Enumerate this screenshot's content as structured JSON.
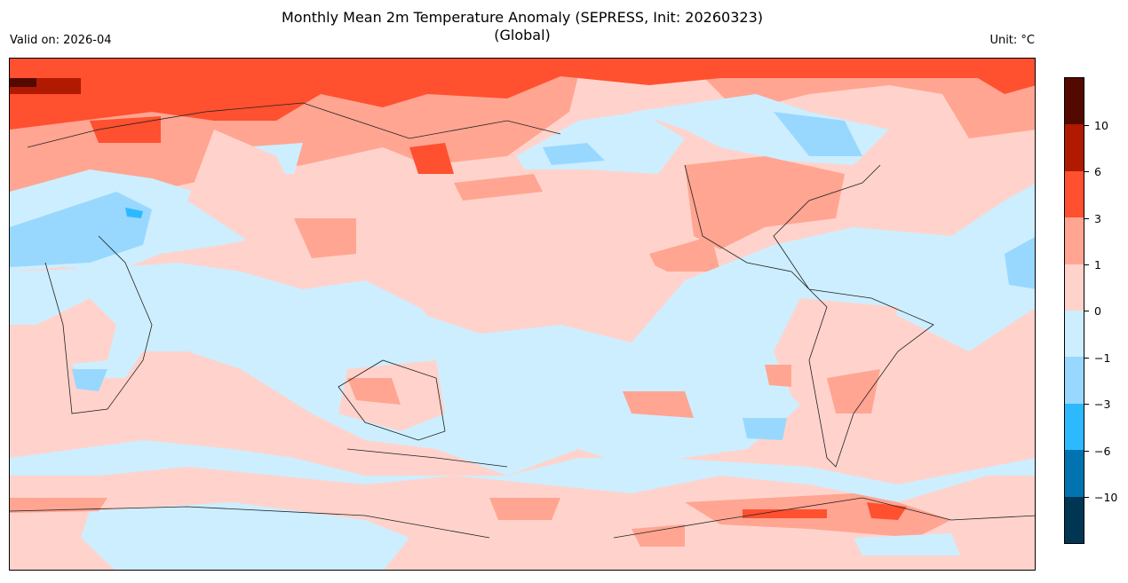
{
  "title_line1": "Monthly Mean 2m Temperature Anomaly (SEPRESS, Init: 20260323)",
  "title_line2": "(Global)",
  "valid_on": "Valid on: 2026-04",
  "unit": "Unit: °C",
  "colorbar": {
    "colors_top_to_bottom": [
      "#540900",
      "#b01a00",
      "#ff5030",
      "#ffa592",
      "#ffd3cc",
      "#cdeeff",
      "#98d8ff",
      "#2db9ff",
      "#0073b0",
      "#003652"
    ],
    "ticks": [
      "10",
      "6",
      "3",
      "1",
      "0",
      "−1",
      "−3",
      "−6",
      "−10"
    ]
  }
}
